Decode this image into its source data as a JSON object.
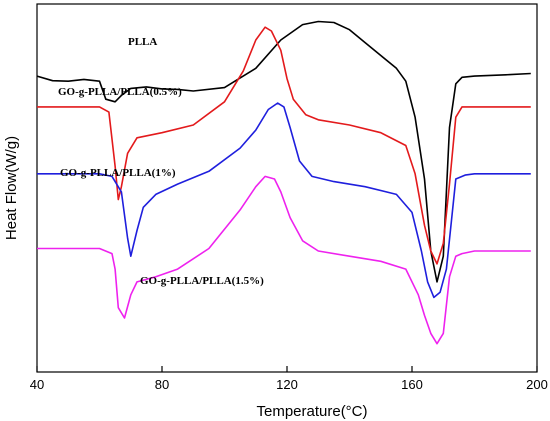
{
  "chart_data": {
    "type": "line",
    "xlabel": "Temperature(°C)",
    "ylabel": "Heat Flow(W/g)",
    "xlim": [
      40,
      200
    ],
    "xticks": [
      40,
      80,
      120,
      160,
      200
    ],
    "xtick_labels": [
      "40",
      "80",
      "120",
      "160",
      "200"
    ],
    "grid": false,
    "yticks_shown": false,
    "series": [
      {
        "name": "PLLA",
        "color": "#000000",
        "points": [
          [
            40,
            1.0
          ],
          [
            45,
            0.82
          ],
          [
            50,
            0.8
          ],
          [
            55,
            0.87
          ],
          [
            60,
            0.8
          ],
          [
            62,
            0.1
          ],
          [
            65,
            0.0
          ],
          [
            67,
            0.25
          ],
          [
            70,
            0.52
          ],
          [
            75,
            0.58
          ],
          [
            80,
            0.5
          ],
          [
            85,
            0.48
          ],
          [
            90,
            0.42
          ],
          [
            100,
            0.55
          ],
          [
            110,
            1.3
          ],
          [
            118,
            2.4
          ],
          [
            125,
            3.0
          ],
          [
            130,
            3.12
          ],
          [
            135,
            3.08
          ],
          [
            140,
            2.8
          ],
          [
            145,
            2.3
          ],
          [
            150,
            1.8
          ],
          [
            155,
            1.3
          ],
          [
            158,
            0.8
          ],
          [
            161,
            -0.6
          ],
          [
            164,
            -3.0
          ],
          [
            166,
            -5.8
          ],
          [
            168,
            -7.0
          ],
          [
            170,
            -6.0
          ],
          [
            172,
            -1.0
          ],
          [
            174,
            0.7
          ],
          [
            176,
            0.95
          ],
          [
            180,
            1.0
          ],
          [
            190,
            1.05
          ],
          [
            198,
            1.1
          ]
        ]
      },
      {
        "name": "GO-g-PLLA/PLLA(0.5%)",
        "color": "#e31a1c",
        "points": [
          [
            40,
            -0.2
          ],
          [
            50,
            -0.2
          ],
          [
            60,
            -0.2
          ],
          [
            63,
            -0.4
          ],
          [
            65,
            -2.5
          ],
          [
            66,
            -3.8
          ],
          [
            67,
            -3.3
          ],
          [
            69,
            -2.0
          ],
          [
            72,
            -1.4
          ],
          [
            80,
            -1.2
          ],
          [
            90,
            -0.9
          ],
          [
            100,
            0.0
          ],
          [
            106,
            1.2
          ],
          [
            110,
            2.4
          ],
          [
            113,
            2.9
          ],
          [
            115,
            2.75
          ],
          [
            118,
            2.0
          ],
          [
            120,
            0.9
          ],
          [
            122,
            0.1
          ],
          [
            126,
            -0.5
          ],
          [
            130,
            -0.7
          ],
          [
            140,
            -0.9
          ],
          [
            150,
            -1.2
          ],
          [
            158,
            -1.7
          ],
          [
            161,
            -2.8
          ],
          [
            164,
            -4.8
          ],
          [
            166,
            -5.8
          ],
          [
            168,
            -6.3
          ],
          [
            170,
            -5.5
          ],
          [
            172,
            -3.2
          ],
          [
            174,
            -0.6
          ],
          [
            176,
            -0.2
          ],
          [
            190,
            -0.2
          ],
          [
            198,
            -0.2
          ]
        ]
      },
      {
        "name": "GO-g-PLLA/PLLA(1%)",
        "color": "#1f1fdd",
        "points": [
          [
            40,
            -2.8
          ],
          [
            50,
            -2.8
          ],
          [
            60,
            -2.8
          ],
          [
            64,
            -2.9
          ],
          [
            67,
            -3.5
          ],
          [
            69,
            -5.3
          ],
          [
            70,
            -6.0
          ],
          [
            72,
            -5.0
          ],
          [
            74,
            -4.1
          ],
          [
            78,
            -3.6
          ],
          [
            85,
            -3.2
          ],
          [
            95,
            -2.7
          ],
          [
            105,
            -1.8
          ],
          [
            110,
            -1.1
          ],
          [
            114,
            -0.3
          ],
          [
            117,
            -0.05
          ],
          [
            119,
            -0.2
          ],
          [
            121,
            -1.0
          ],
          [
            124,
            -2.3
          ],
          [
            128,
            -2.9
          ],
          [
            135,
            -3.1
          ],
          [
            145,
            -3.3
          ],
          [
            155,
            -3.6
          ],
          [
            160,
            -4.3
          ],
          [
            163,
            -5.8
          ],
          [
            165,
            -7.0
          ],
          [
            167,
            -7.6
          ],
          [
            169,
            -7.4
          ],
          [
            171,
            -6.5
          ],
          [
            174,
            -3.0
          ],
          [
            177,
            -2.85
          ],
          [
            180,
            -2.8
          ],
          [
            190,
            -2.8
          ],
          [
            198,
            -2.8
          ]
        ]
      },
      {
        "name": "GO-g-PLLA/PLLA(1.5%)",
        "color": "#ee22ee",
        "points": [
          [
            40,
            -5.7
          ],
          [
            50,
            -5.7
          ],
          [
            60,
            -5.7
          ],
          [
            64,
            -5.9
          ],
          [
            65,
            -6.5
          ],
          [
            66,
            -8.0
          ],
          [
            68,
            -8.4
          ],
          [
            70,
            -7.5
          ],
          [
            72,
            -7.0
          ],
          [
            78,
            -6.8
          ],
          [
            85,
            -6.5
          ],
          [
            95,
            -5.7
          ],
          [
            105,
            -4.2
          ],
          [
            110,
            -3.3
          ],
          [
            113,
            -2.9
          ],
          [
            116,
            -3.0
          ],
          [
            118,
            -3.5
          ],
          [
            121,
            -4.5
          ],
          [
            125,
            -5.4
          ],
          [
            130,
            -5.8
          ],
          [
            140,
            -6.0
          ],
          [
            150,
            -6.2
          ],
          [
            158,
            -6.5
          ],
          [
            162,
            -7.5
          ],
          [
            164,
            -8.3
          ],
          [
            166,
            -9.0
          ],
          [
            168,
            -9.4
          ],
          [
            170,
            -9.0
          ],
          [
            172,
            -6.8
          ],
          [
            174,
            -6.0
          ],
          [
            176,
            -5.9
          ],
          [
            180,
            -5.8
          ],
          [
            190,
            -5.8
          ],
          [
            198,
            -5.8
          ]
        ]
      }
    ],
    "annotations": [
      {
        "text": "PLLA"
      },
      {
        "text": "GO-g-PLLA/PLLA(0.5%)"
      },
      {
        "text": "GO-g-PLLA/PLLA(1%)"
      },
      {
        "text": "GO-g-PLLA/PLLA(1.5%)"
      }
    ]
  }
}
